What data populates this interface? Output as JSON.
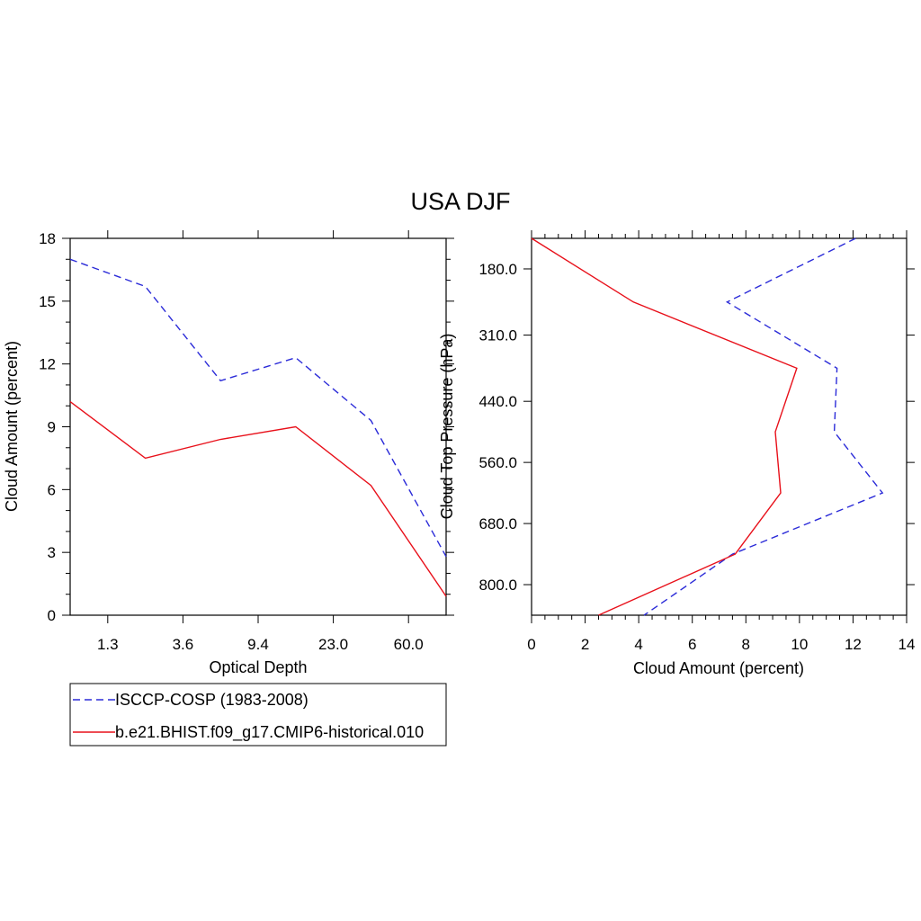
{
  "title": "USA DJF",
  "colors": {
    "obs": "#2b2bd8",
    "model": "#e8101a",
    "axis": "#000000",
    "background": "#ffffff"
  },
  "legend": {
    "items": [
      {
        "label": "ISCCP-COSP (1983-2008)",
        "color": "#2b2bd8",
        "dash": "dashed"
      },
      {
        "label": "b.e21.BHIST.f09_g17.CMIP6-historical.010",
        "color": "#e8101a",
        "dash": "solid"
      }
    ]
  },
  "chart_data": [
    {
      "type": "line",
      "xlabel": "Optical Depth",
      "ylabel": "Cloud Amount (percent)",
      "xlim": [
        0,
        5
      ],
      "ylim": [
        0,
        18
      ],
      "x_tick_values": [
        0.5,
        1.5,
        2.5,
        3.5,
        4.5
      ],
      "x_tick_labels": [
        "1.3",
        "3.6",
        "9.4",
        "23.0",
        "60.0"
      ],
      "y_ticks": [
        0,
        3,
        6,
        9,
        12,
        15,
        18
      ],
      "y_tick_labels": [
        "0",
        "3",
        "6",
        "9",
        "12",
        "15",
        "18"
      ],
      "x": [
        0,
        1,
        2,
        3,
        4,
        5
      ],
      "series": [
        {
          "name": "ISCCP-COSP (1983-2008)",
          "color": "#2b2bd8",
          "dash": "dashed",
          "values": [
            17.0,
            15.7,
            11.2,
            12.3,
            9.3,
            2.8
          ]
        },
        {
          "name": "b.e21.BHIST.f09_g17.CMIP6-historical.010",
          "color": "#e8101a",
          "dash": "solid",
          "values": [
            10.2,
            7.5,
            8.4,
            9.0,
            6.2,
            0.9
          ]
        }
      ]
    },
    {
      "type": "line",
      "orientation": "vertical-profile",
      "xlabel": "Cloud Amount (percent)",
      "ylabel": "Cloud Top Pressure (hPa)",
      "xlim": [
        0,
        14
      ],
      "ylim": [
        120,
        860
      ],
      "y_reversed": true,
      "x_ticks": [
        0,
        2,
        4,
        6,
        8,
        10,
        12,
        14
      ],
      "x_tick_labels": [
        "0",
        "2",
        "4",
        "6",
        "8",
        "10",
        "12",
        "14"
      ],
      "y_ticks": [
        180,
        310,
        440,
        560,
        680,
        800
      ],
      "y_tick_labels": [
        "180.0",
        "310.0",
        "440.0",
        "560.0",
        "680.0",
        "800.0"
      ],
      "y": [
        120,
        245,
        375,
        500,
        620,
        740,
        860
      ],
      "series": [
        {
          "name": "ISCCP-COSP (1983-2008)",
          "color": "#2b2bd8",
          "dash": "dashed",
          "values": [
            12.1,
            7.3,
            11.4,
            11.3,
            13.1,
            7.5,
            4.2
          ]
        },
        {
          "name": "b.e21.BHIST.f09_g17.CMIP6-historical.010",
          "color": "#e8101a",
          "dash": "solid",
          "values": [
            0.0,
            3.8,
            9.9,
            9.1,
            9.3,
            7.6,
            2.5
          ]
        }
      ]
    }
  ]
}
